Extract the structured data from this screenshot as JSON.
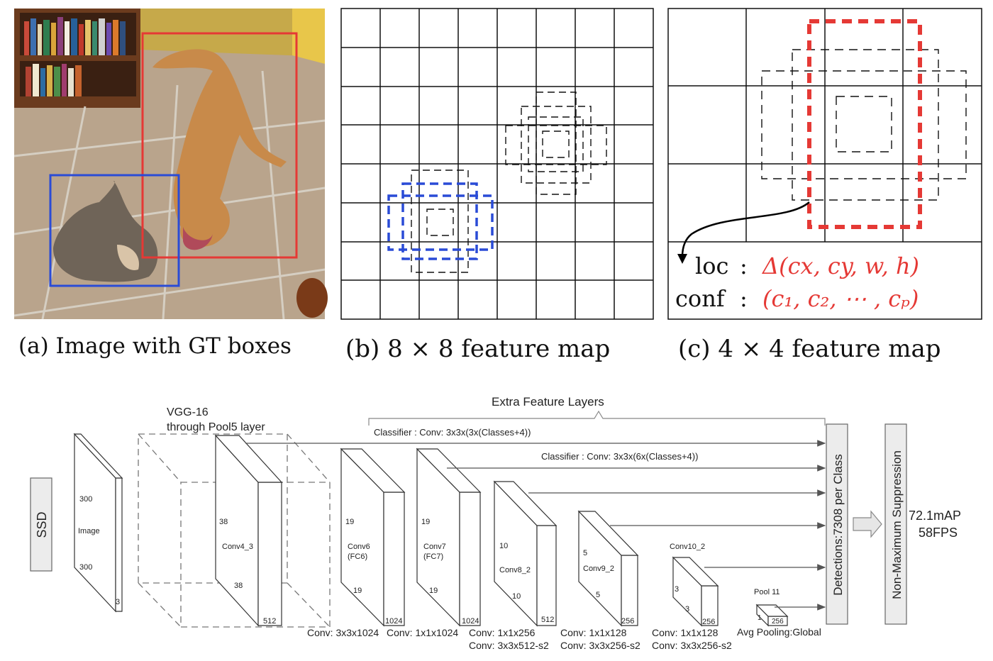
{
  "panels": {
    "a_caption": "(a) Image with GT boxes",
    "b_caption": "(b) 8 × 8 feature map",
    "c_caption": "(c) 4 × 4 feature map",
    "loc_label": "loc",
    "loc_formula": "Δ(cx, cy, w, h)",
    "conf_label": "conf",
    "conf_formula": "(c₁, c₂, ⋯ , cₚ)",
    "colon": ":"
  },
  "colors": {
    "gt_dog_box": "#e53935",
    "gt_cat_box": "#2a4bd6",
    "default_box_match": "#e53935"
  },
  "network": {
    "ssd_label": "SSD",
    "vgg_title_1": "VGG-16",
    "vgg_title_2": "through Pool5 layer",
    "extra_layers": "Extra Feature Layers",
    "classifier_1": "Classifier : Conv: 3x3x(3x(Classes+4))",
    "classifier_2": "Classifier : Conv: 3x3x(6x(Classes+4))",
    "image": {
      "name": "Image",
      "h": "300",
      "w": "300",
      "c": "3"
    },
    "conv4_3": {
      "name": "Conv4_3",
      "h": "38",
      "w": "38",
      "c": "512"
    },
    "conv6": {
      "name1": "Conv6",
      "name2": "(FC6)",
      "h": "19",
      "w": "19",
      "c": "1024"
    },
    "conv7": {
      "name1": "Conv7",
      "name2": "(FC7)",
      "h": "19",
      "w": "19",
      "c": "1024"
    },
    "conv8_2": {
      "name": "Conv8_2",
      "h": "10",
      "w": "10",
      "c": "512"
    },
    "conv9_2": {
      "name": "Conv9_2",
      "h": "5",
      "w": "5",
      "c": "256"
    },
    "conv10_2": {
      "name": "Conv10_2",
      "h": "3",
      "w": "3",
      "c": "256"
    },
    "pool11": {
      "name": "Pool 11",
      "h": "1",
      "c": "256"
    },
    "op_conv6": "Conv: 3x3x1024",
    "op_conv7": "Conv: 1x1x1024",
    "op_conv8_a": "Conv: 1x1x256",
    "op_conv8_b": "Conv:  3x3x512-s2",
    "op_conv9_a": "Conv: 1x1x128",
    "op_conv9_b": "Conv: 3x3x256-s2",
    "op_conv10_a": "Conv: 1x1x128",
    "op_conv10_b": "Conv: 3x3x256-s2",
    "op_pool": "Avg Pooling:Global",
    "detections": "Detections:7308  per Class",
    "nms": "Non-Maximum Suppression",
    "map": "72.1mAP",
    "fps": "58FPS"
  }
}
